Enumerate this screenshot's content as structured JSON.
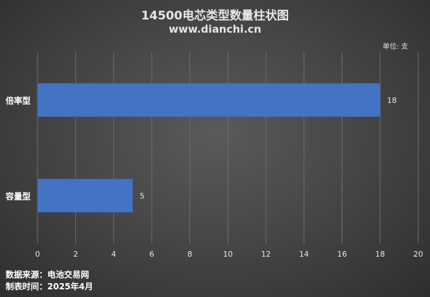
{
  "header": {
    "title": "14500电芯类型数量柱状图",
    "subtitle": "www.dianchi.cn",
    "unit": "单位: 支"
  },
  "footer": {
    "source": "数据来源：电池交易网",
    "date": "制表时间：2025年4月"
  },
  "colors": {
    "bar": "#4472c4",
    "grid": "#6e6e6e",
    "text": "#e8e8e8"
  },
  "chart_data": {
    "type": "bar",
    "orientation": "horizontal",
    "title": "14500电芯类型数量柱状图",
    "categories": [
      "倍率型",
      "容量型"
    ],
    "values": [
      18,
      5
    ],
    "xlim": [
      0,
      20
    ],
    "xticks": [
      "0",
      "2",
      "4",
      "6",
      "8",
      "10",
      "12",
      "14",
      "16",
      "18",
      "20"
    ],
    "grid": "vertical",
    "data_labels": [
      "18",
      "5"
    ]
  }
}
